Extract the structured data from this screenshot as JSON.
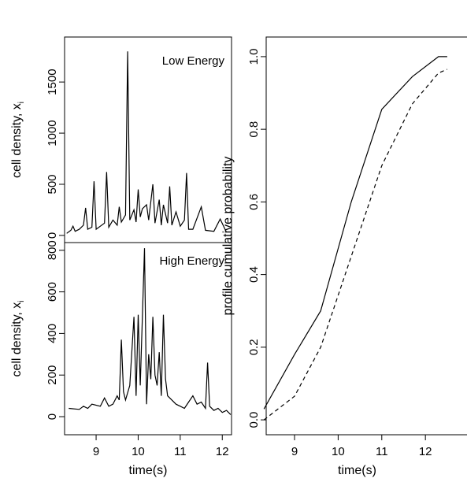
{
  "chart_data": [
    {
      "type": "line",
      "annotation": "Low Energy",
      "ylabel": "cell density, x",
      "ylabel_sub": "i",
      "xlim": [
        8.25,
        12.22
      ],
      "ylim": [
        -70,
        1940
      ],
      "yticks": [
        0,
        500,
        1000,
        1500
      ],
      "x": [
        8.3,
        8.4,
        8.45,
        8.5,
        8.6,
        8.7,
        8.75,
        8.8,
        8.9,
        8.95,
        9.0,
        9.1,
        9.2,
        9.25,
        9.3,
        9.4,
        9.5,
        9.55,
        9.6,
        9.7,
        9.75,
        9.8,
        9.9,
        9.95,
        10.0,
        10.05,
        10.1,
        10.2,
        10.25,
        10.35,
        10.4,
        10.5,
        10.55,
        10.6,
        10.7,
        10.75,
        10.8,
        10.9,
        11.0,
        11.1,
        11.15,
        11.2,
        11.3,
        11.5,
        11.6,
        11.8,
        11.95,
        12.1
      ],
      "series": [
        {
          "color": "#000000",
          "style": "solid",
          "values": [
            20,
            50,
            90,
            40,
            60,
            100,
            270,
            60,
            80,
            530,
            60,
            90,
            120,
            620,
            80,
            150,
            100,
            280,
            130,
            200,
            1800,
            150,
            250,
            130,
            450,
            180,
            260,
            300,
            150,
            500,
            120,
            350,
            100,
            300,
            120,
            480,
            100,
            230,
            90,
            150,
            610,
            60,
            60,
            280,
            50,
            40,
            160,
            30
          ]
        }
      ]
    },
    {
      "type": "line",
      "annotation": "High Energy",
      "ylabel": "cell density, x",
      "ylabel_sub": "i",
      "xlabel": "time(s)",
      "xlim": [
        8.25,
        12.22
      ],
      "ylim": [
        -87,
        837
      ],
      "yticks": [
        0,
        200,
        400,
        600,
        800
      ],
      "xticks": [
        9,
        10,
        11,
        12
      ],
      "x": [
        8.35,
        8.6,
        8.7,
        8.8,
        8.9,
        9.1,
        9.2,
        9.3,
        9.4,
        9.5,
        9.55,
        9.6,
        9.65,
        9.7,
        9.8,
        9.9,
        9.95,
        10.0,
        10.05,
        10.15,
        10.2,
        10.25,
        10.3,
        10.35,
        10.4,
        10.45,
        10.5,
        10.55,
        10.6,
        10.65,
        10.7,
        10.8,
        10.9,
        11.0,
        11.1,
        11.2,
        11.3,
        11.4,
        11.5,
        11.6,
        11.65,
        11.7,
        11.8,
        11.9,
        12.0,
        12.1,
        12.2
      ],
      "series": [
        {
          "color": "#000000",
          "style": "solid",
          "values": [
            40,
            35,
            50,
            40,
            60,
            50,
            90,
            50,
            60,
            100,
            80,
            370,
            120,
            80,
            150,
            480,
            100,
            490,
            150,
            810,
            60,
            300,
            180,
            480,
            200,
            150,
            310,
            100,
            490,
            180,
            100,
            80,
            60,
            50,
            40,
            70,
            100,
            60,
            70,
            40,
            260,
            50,
            30,
            40,
            20,
            30,
            10
          ]
        }
      ]
    },
    {
      "type": "line",
      "ylabel": "profile cumulative probability",
      "xlabel": "time(s)",
      "xlim": [
        8.35,
        13.08
      ],
      "ylim": [
        -0.041,
        1.054
      ],
      "yticks": [
        {
          "value": 0,
          "label": "0.0"
        },
        0.2,
        0.4,
        0.6,
        0.8,
        {
          "value": 1,
          "label": "1.0"
        }
      ],
      "xticks": [
        9,
        10,
        11,
        12
      ],
      "x": [
        8.3,
        9.0,
        9.6,
        10.3,
        11.0,
        11.7,
        12.3,
        12.5
      ],
      "series": [
        {
          "color": "#000000",
          "style": "solid",
          "values": [
            0.03,
            0.18,
            0.3,
            0.6,
            0.855,
            0.945,
            1.0,
            1.0
          ]
        },
        {
          "color": "#000000",
          "style": "dashed",
          "values": [
            0.0,
            0.065,
            0.2,
            0.45,
            0.7,
            0.87,
            0.955,
            0.965
          ]
        }
      ]
    }
  ]
}
